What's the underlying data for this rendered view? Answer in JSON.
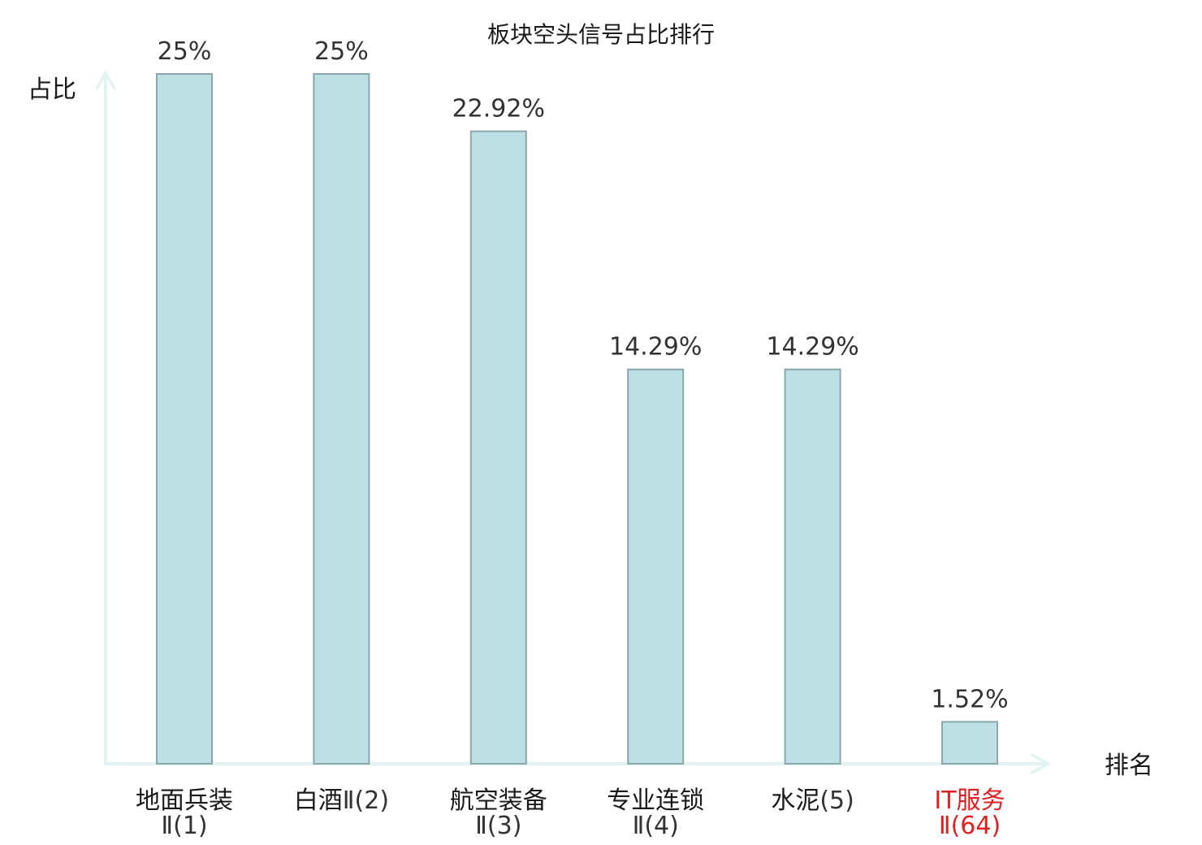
{
  "chart_data": {
    "type": "bar",
    "title": "板块空头信号占比排行",
    "ylabel": "占比",
    "xlabel": "排名",
    "ylim": [
      0,
      25
    ],
    "grid": false,
    "legend": "none",
    "bar_color": "#bce0e3",
    "bar_edge_color": "#8aa8ab",
    "axis_color": "#e2f4f1",
    "highlight_color": "#e02020",
    "categories": [
      {
        "name": "地面兵装",
        "rank": "Ⅱ(1)",
        "split": true,
        "highlight": false
      },
      {
        "name": "白酒",
        "rank": "Ⅱ(2)",
        "split": false,
        "highlight": false
      },
      {
        "name": "航空装备",
        "rank": "Ⅱ(3)",
        "split": true,
        "highlight": false
      },
      {
        "name": "专业连锁",
        "rank": "Ⅱ(4)",
        "split": true,
        "highlight": false
      },
      {
        "name": "水泥",
        "rank": "(5)",
        "split": false,
        "highlight": false
      },
      {
        "name": "IT服务",
        "rank": "Ⅱ(64)",
        "split": true,
        "highlight": true
      }
    ],
    "values": [
      25,
      25,
      22.92,
      14.29,
      14.29,
      1.52
    ],
    "value_labels": [
      "25%",
      "25%",
      "22.92%",
      "14.29%",
      "14.29%",
      "1.52%"
    ]
  }
}
